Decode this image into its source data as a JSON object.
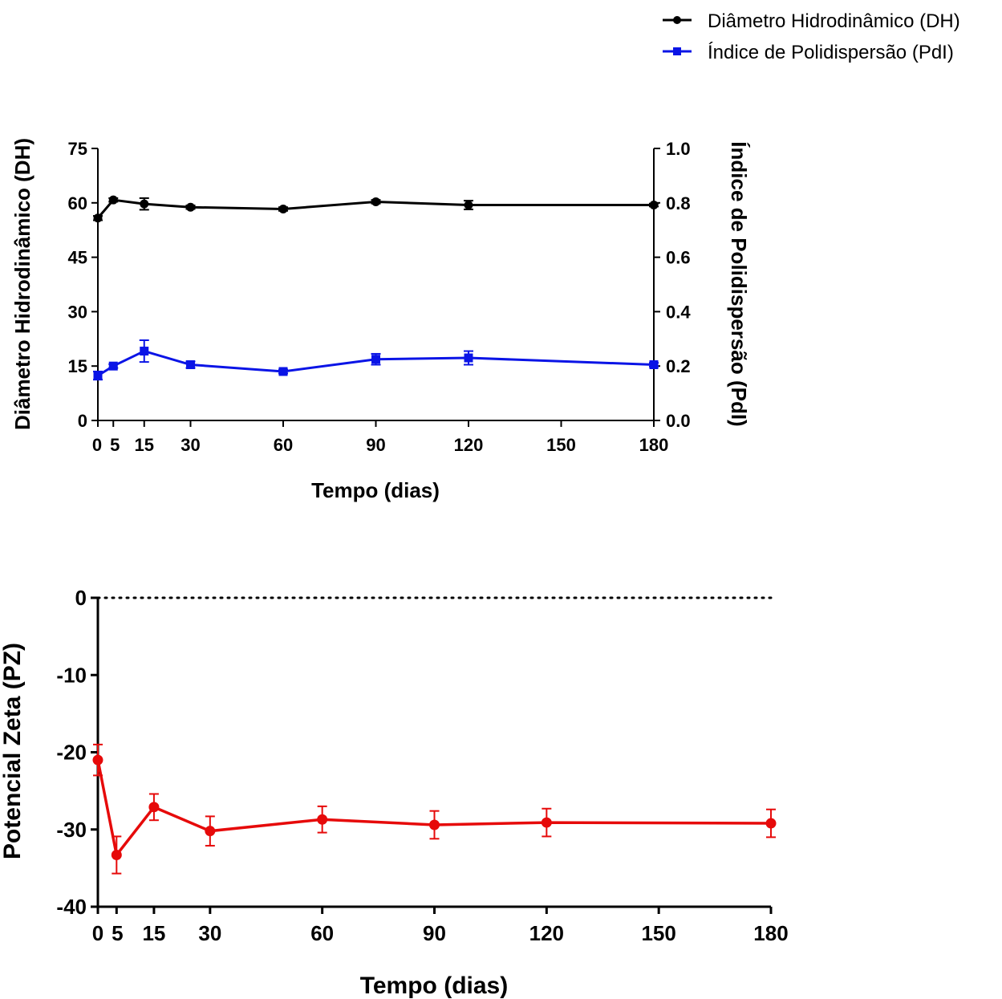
{
  "legend": {
    "items": [
      {
        "label": "Diâmetro Hidrodinâmico (DH)",
        "color": "#000000",
        "marker": "circle"
      },
      {
        "label": "Índice de Polidispersão (PdI)",
        "color": "#0a14e6",
        "marker": "square"
      }
    ]
  },
  "chart_data": [
    {
      "type": "line",
      "xlabel": "Tempo (dias)",
      "ylabel": "Diâmetro Hidrodinâmico (DH)",
      "y2label": "Índice de Polidispersão (PdI)",
      "xlim": [
        0,
        180
      ],
      "ylim": [
        0,
        75
      ],
      "y2lim": [
        0,
        1.0
      ],
      "x_ticks": [
        "0",
        "5",
        "15",
        "30",
        "60",
        "90",
        "120",
        "150",
        "180"
      ],
      "x_tick_values": [
        0,
        5,
        15,
        30,
        60,
        90,
        120,
        150,
        180
      ],
      "y_ticks": [
        "0",
        "15",
        "30",
        "45",
        "60",
        "75"
      ],
      "y2_ticks": [
        "0.0",
        "0.2",
        "0.4",
        "0.6",
        "0.8",
        "1.0"
      ],
      "grid": false,
      "legend_position": "top-right",
      "series": [
        {
          "name": "Diâmetro Hidrodinâmico (DH)",
          "axis": "left",
          "color": "#000000",
          "marker": "circle",
          "x": [
            0,
            5,
            15,
            30,
            60,
            90,
            120,
            180
          ],
          "y": [
            55.8,
            60.8,
            59.7,
            58.8,
            58.3,
            60.3,
            59.4,
            59.4
          ],
          "error": [
            0.6,
            0.5,
            1.6,
            0.5,
            0.5,
            0.5,
            1.2,
            0.4
          ]
        },
        {
          "name": "Índice de Polidispersão (PdI)",
          "axis": "right",
          "color": "#0a14e6",
          "marker": "square",
          "x": [
            0,
            5,
            15,
            30,
            60,
            90,
            120,
            180
          ],
          "y": [
            0.165,
            0.2,
            0.255,
            0.205,
            0.18,
            0.225,
            0.23,
            0.205
          ],
          "error": [
            0.015,
            0.007,
            0.04,
            0.012,
            0.007,
            0.02,
            0.025,
            0.007
          ]
        }
      ]
    },
    {
      "type": "line",
      "xlabel": "Tempo (dias)",
      "ylabel": "Potencial Zeta (PZ)",
      "xlim": [
        0,
        180
      ],
      "ylim": [
        -40,
        0
      ],
      "x_ticks": [
        "0",
        "5",
        "15",
        "30",
        "60",
        "90",
        "120",
        "150",
        "180"
      ],
      "x_tick_values": [
        0,
        5,
        15,
        30,
        60,
        90,
        120,
        150,
        180
      ],
      "y_ticks": [
        "-40",
        "-30",
        "-20",
        "-10",
        "0"
      ],
      "y_tick_values": [
        -40,
        -30,
        -20,
        -10,
        0
      ],
      "reference_line": 0,
      "grid": false,
      "series": [
        {
          "color": "#e60a0a",
          "marker": "circle",
          "x": [
            0,
            5,
            15,
            30,
            60,
            90,
            120,
            180
          ],
          "y": [
            -21,
            -33.3,
            -27.1,
            -30.2,
            -28.7,
            -29.4,
            -29.1,
            -29.2
          ],
          "error": [
            2.0,
            2.4,
            1.7,
            1.9,
            1.7,
            1.8,
            1.8,
            1.8
          ]
        }
      ]
    }
  ]
}
